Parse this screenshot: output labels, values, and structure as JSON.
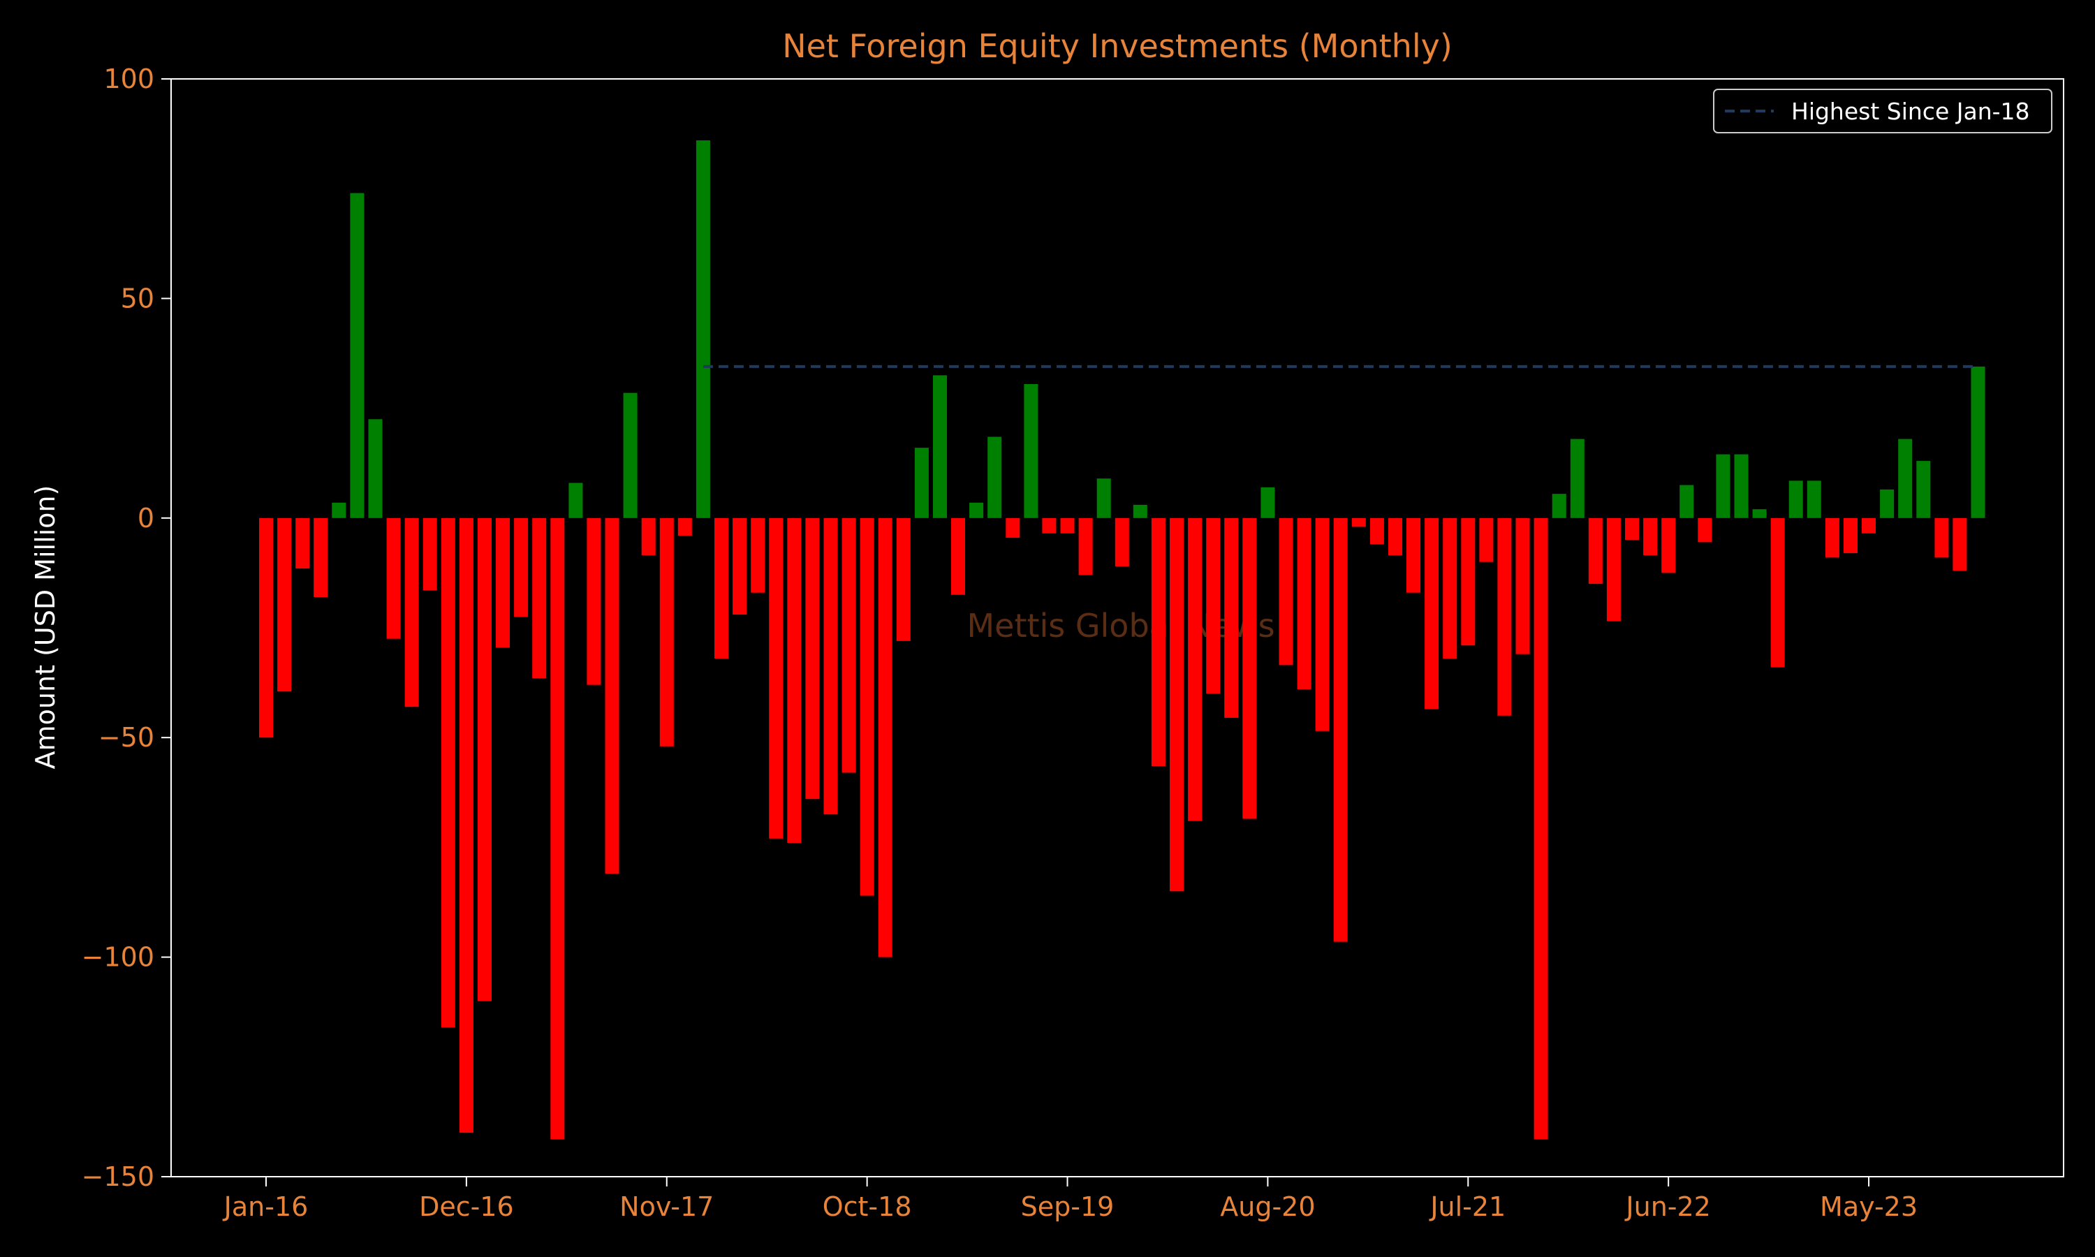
{
  "chart_data": {
    "type": "bar",
    "title": "Net Foreign Equity Investments (Monthly)",
    "xlabel": "",
    "ylabel": "Amount (USD Million)",
    "ylim": [
      -150,
      100
    ],
    "yticks": [
      -150,
      -100,
      -50,
      0,
      50,
      100
    ],
    "ytick_labels": [
      "−150",
      "−100",
      "−50",
      "0",
      "50",
      "100"
    ],
    "xtick_labels": [
      "Jan-16",
      "Dec-16",
      "Nov-17",
      "Oct-18",
      "Sep-19",
      "Aug-20",
      "Jul-21",
      "Jun-22",
      "May-23"
    ],
    "xtick_month_index": [
      0,
      11,
      22,
      33,
      44,
      55,
      66,
      77,
      88
    ],
    "start_month": "Jan-16",
    "grid": false,
    "legend_position": "upper right",
    "values": [
      -50,
      -39.5,
      -11.5,
      -18,
      3.5,
      74,
      22.5,
      -27.5,
      -43,
      -16.5,
      -116,
      -140,
      -110,
      -29.5,
      -22.5,
      -36.5,
      -141.5,
      8,
      -38,
      -81,
      28.5,
      -8.5,
      -52,
      -4,
      86,
      -32,
      -22,
      -17,
      -73,
      -74,
      -64,
      -67.5,
      -58,
      -86,
      -100,
      -28,
      16,
      32.5,
      -17.5,
      3.5,
      18.5,
      -4.5,
      30.5,
      -3.5,
      -3.5,
      -13,
      9,
      -11,
      3,
      -56.5,
      -85,
      -69,
      -40,
      -45.5,
      -68.5,
      7,
      -33.5,
      -39,
      -48.5,
      -96.5,
      -2,
      -6,
      -8.5,
      -17,
      -43.5,
      -32,
      -29,
      -10,
      -45,
      -31,
      -141.5,
      5.5,
      18,
      -15,
      -23.5,
      -5,
      -8.5,
      -12.5,
      7.5,
      -5.5,
      14.5,
      14.5,
      2,
      -34,
      8.5,
      8.5,
      -9,
      -8,
      -3.5,
      6.5,
      18,
      13,
      -9,
      -12,
      34.5
    ],
    "positive_color": "#008000",
    "negative_color": "#ff0000",
    "reference_line": {
      "label": "Highest Since Jan-18",
      "value": 34.5,
      "from_month_index": 24,
      "to_month_index": 94,
      "color": "#1f3a5c",
      "style": "dashed"
    },
    "watermark": "Mettis Global News"
  },
  "colors": {
    "background": "#000000",
    "title": "#e8833a",
    "ticks": "#e8833a",
    "ylabel": "#ffffff",
    "axes": "#ffffff",
    "watermark": "#5a2d14"
  }
}
